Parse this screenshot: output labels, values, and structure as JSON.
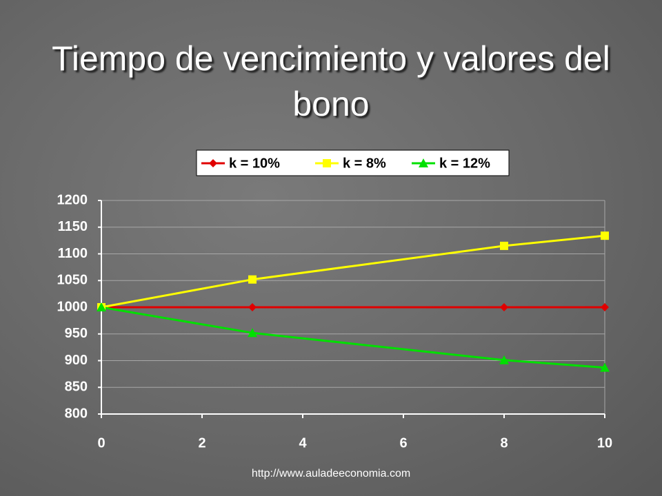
{
  "chart_data": {
    "type": "line",
    "title": "Tiempo de vencimiento y valores del bono",
    "x": [
      0,
      3,
      8,
      10
    ],
    "series": [
      {
        "name": "k = 10%",
        "color": "#e00000",
        "marker": "diamond",
        "values": [
          1000,
          1000,
          1000,
          1000
        ]
      },
      {
        "name": "k = 8%",
        "color": "#ffff00",
        "marker": "square",
        "values": [
          1000,
          1052,
          1115,
          1134
        ]
      },
      {
        "name": "k = 12%",
        "color": "#00e000",
        "marker": "triangle",
        "values": [
          1000,
          952,
          901,
          887
        ]
      }
    ],
    "xlim": [
      0,
      10
    ],
    "xticks": [
      0,
      2,
      4,
      6,
      8,
      10
    ],
    "ylim": [
      800,
      1200
    ],
    "yticks": [
      800,
      850,
      900,
      950,
      1000,
      1050,
      1100,
      1150,
      1200
    ],
    "grid": true,
    "legend": "top"
  },
  "footer": "http://www.auladeeconomia.com"
}
